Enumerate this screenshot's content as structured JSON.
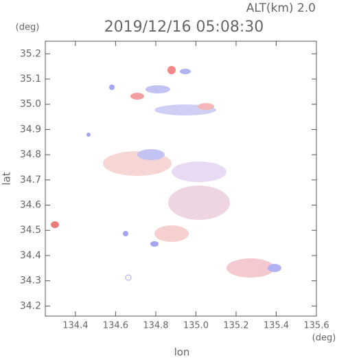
{
  "chart_data": {
    "type": "radar-map",
    "title": "2019/12/16 05:08:30",
    "altitude_label": "ALT(km) 2.0",
    "y_unit": "(deg)",
    "x_unit": "(deg)",
    "xlabel": "lon",
    "ylabel": "lat",
    "xlim": [
      134.25,
      135.6
    ],
    "xticks": [
      134.4,
      134.6,
      134.8,
      {
        "value": 135.0,
        "label": "135.0"
      },
      135.2,
      135.4,
      135.6
    ],
    "ylim": [
      34.16,
      35.25
    ],
    "yticks": [
      34.2,
      34.3,
      34.4,
      34.5,
      34.6,
      34.7,
      34.8,
      34.9,
      {
        "value": 35.0,
        "label": "35.0"
      },
      35.1,
      35.2
    ]
  }
}
